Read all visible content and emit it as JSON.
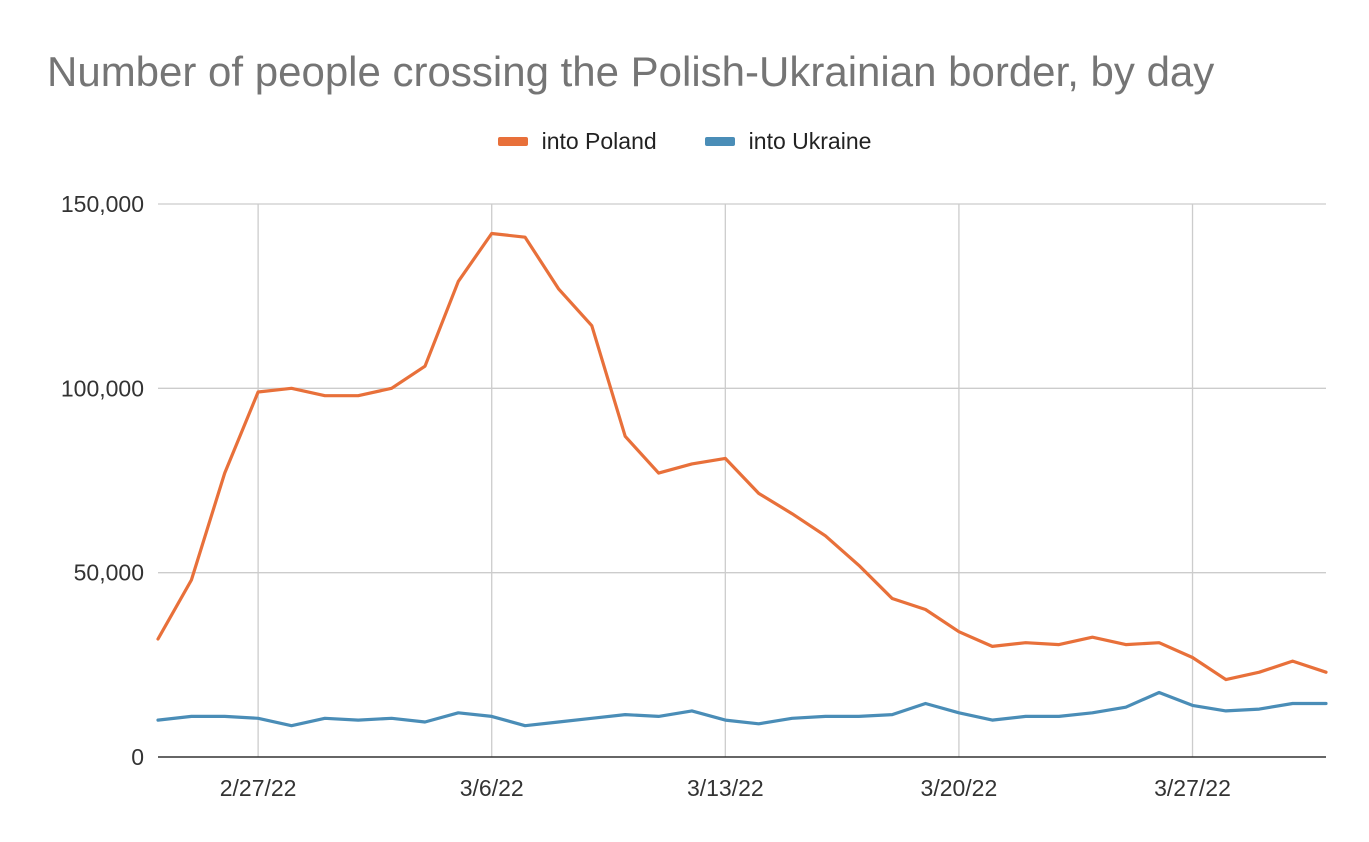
{
  "chart_data": {
    "type": "line",
    "title": "Number of people crossing the Polish-Ukrainian border, by day",
    "xlabel": "",
    "ylabel": "",
    "x": [
      "2/24/22",
      "2/25/22",
      "2/26/22",
      "2/27/22",
      "2/28/22",
      "3/1/22",
      "3/2/22",
      "3/3/22",
      "3/4/22",
      "3/5/22",
      "3/6/22",
      "3/7/22",
      "3/8/22",
      "3/9/22",
      "3/10/22",
      "3/11/22",
      "3/12/22",
      "3/13/22",
      "3/14/22",
      "3/15/22",
      "3/16/22",
      "3/17/22",
      "3/18/22",
      "3/19/22",
      "3/20/22",
      "3/21/22",
      "3/22/22",
      "3/23/22",
      "3/24/22",
      "3/25/22",
      "3/26/22",
      "3/27/22",
      "3/28/22",
      "3/29/22",
      "3/30/22",
      "3/31/22"
    ],
    "x_ticks": [
      {
        "index": 3,
        "label": "2/27/22"
      },
      {
        "index": 10,
        "label": "3/6/22"
      },
      {
        "index": 17,
        "label": "3/13/22"
      },
      {
        "index": 24,
        "label": "3/20/22"
      },
      {
        "index": 31,
        "label": "3/27/22"
      }
    ],
    "y_ticks": [
      {
        "value": 0,
        "label": "0"
      },
      {
        "value": 50000,
        "label": "50,000"
      },
      {
        "value": 100000,
        "label": "100,000"
      },
      {
        "value": 150000,
        "label": "150,000"
      }
    ],
    "ylim": [
      0,
      150000
    ],
    "grid": true,
    "legend_position": "top",
    "series": [
      {
        "name": "into Poland",
        "color": "#e8703a",
        "values": [
          32000,
          48000,
          77000,
          99000,
          100000,
          98000,
          98000,
          100000,
          106000,
          129000,
          142000,
          141000,
          127000,
          117000,
          87000,
          77000,
          79500,
          81000,
          71500,
          66000,
          60000,
          52000,
          43000,
          40000,
          34000,
          30000,
          31000,
          30500,
          32500,
          30500,
          31000,
          27000,
          21000,
          23000,
          26000,
          23000
        ]
      },
      {
        "name": "into Ukraine",
        "color": "#4a8db7",
        "values": [
          10000,
          11000,
          11000,
          10500,
          8500,
          10500,
          10000,
          10500,
          9500,
          12000,
          11000,
          8500,
          9500,
          10500,
          11500,
          11000,
          12500,
          10000,
          9000,
          10500,
          11000,
          11000,
          11500,
          14500,
          12000,
          10000,
          11000,
          11000,
          12000,
          13500,
          17500,
          14000,
          12500,
          13000,
          14500,
          14500
        ]
      }
    ]
  }
}
